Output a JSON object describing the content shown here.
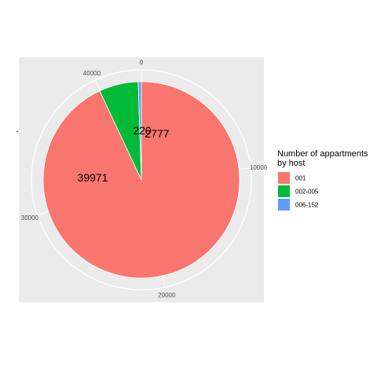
{
  "chart_data": {
    "type": "pie",
    "title": "",
    "xlabel": "",
    "ylabel": "-",
    "categories": [
      "001",
      "002-005",
      "006-152"
    ],
    "values": [
      39971,
      2777,
      220
    ],
    "data_labels": [
      "39971",
      "2777",
      "220"
    ],
    "colors": [
      "#F8766D",
      "#00BA38",
      "#619CFF"
    ],
    "angular_ticks": [
      0,
      10000,
      20000,
      30000,
      40000
    ],
    "angular_tick_labels": [
      "0",
      "10000",
      "20000",
      "30000",
      "40000"
    ],
    "angular_range": [
      0,
      42968
    ],
    "legend": {
      "title_lines": [
        "Number of appartments",
        "by host"
      ],
      "position": "right"
    },
    "panel_background": "#EBEBEB",
    "grid": true
  }
}
